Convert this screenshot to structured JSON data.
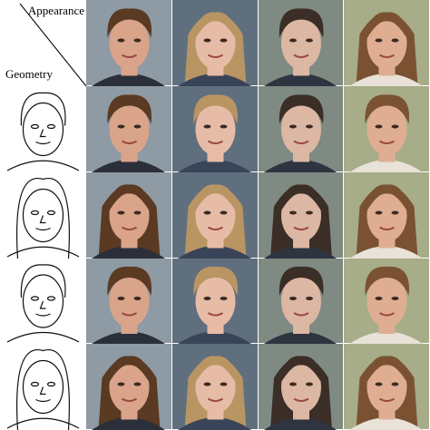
{
  "header": {
    "appearance_label": "Appearance",
    "geometry_label": "Geometry"
  }
}
